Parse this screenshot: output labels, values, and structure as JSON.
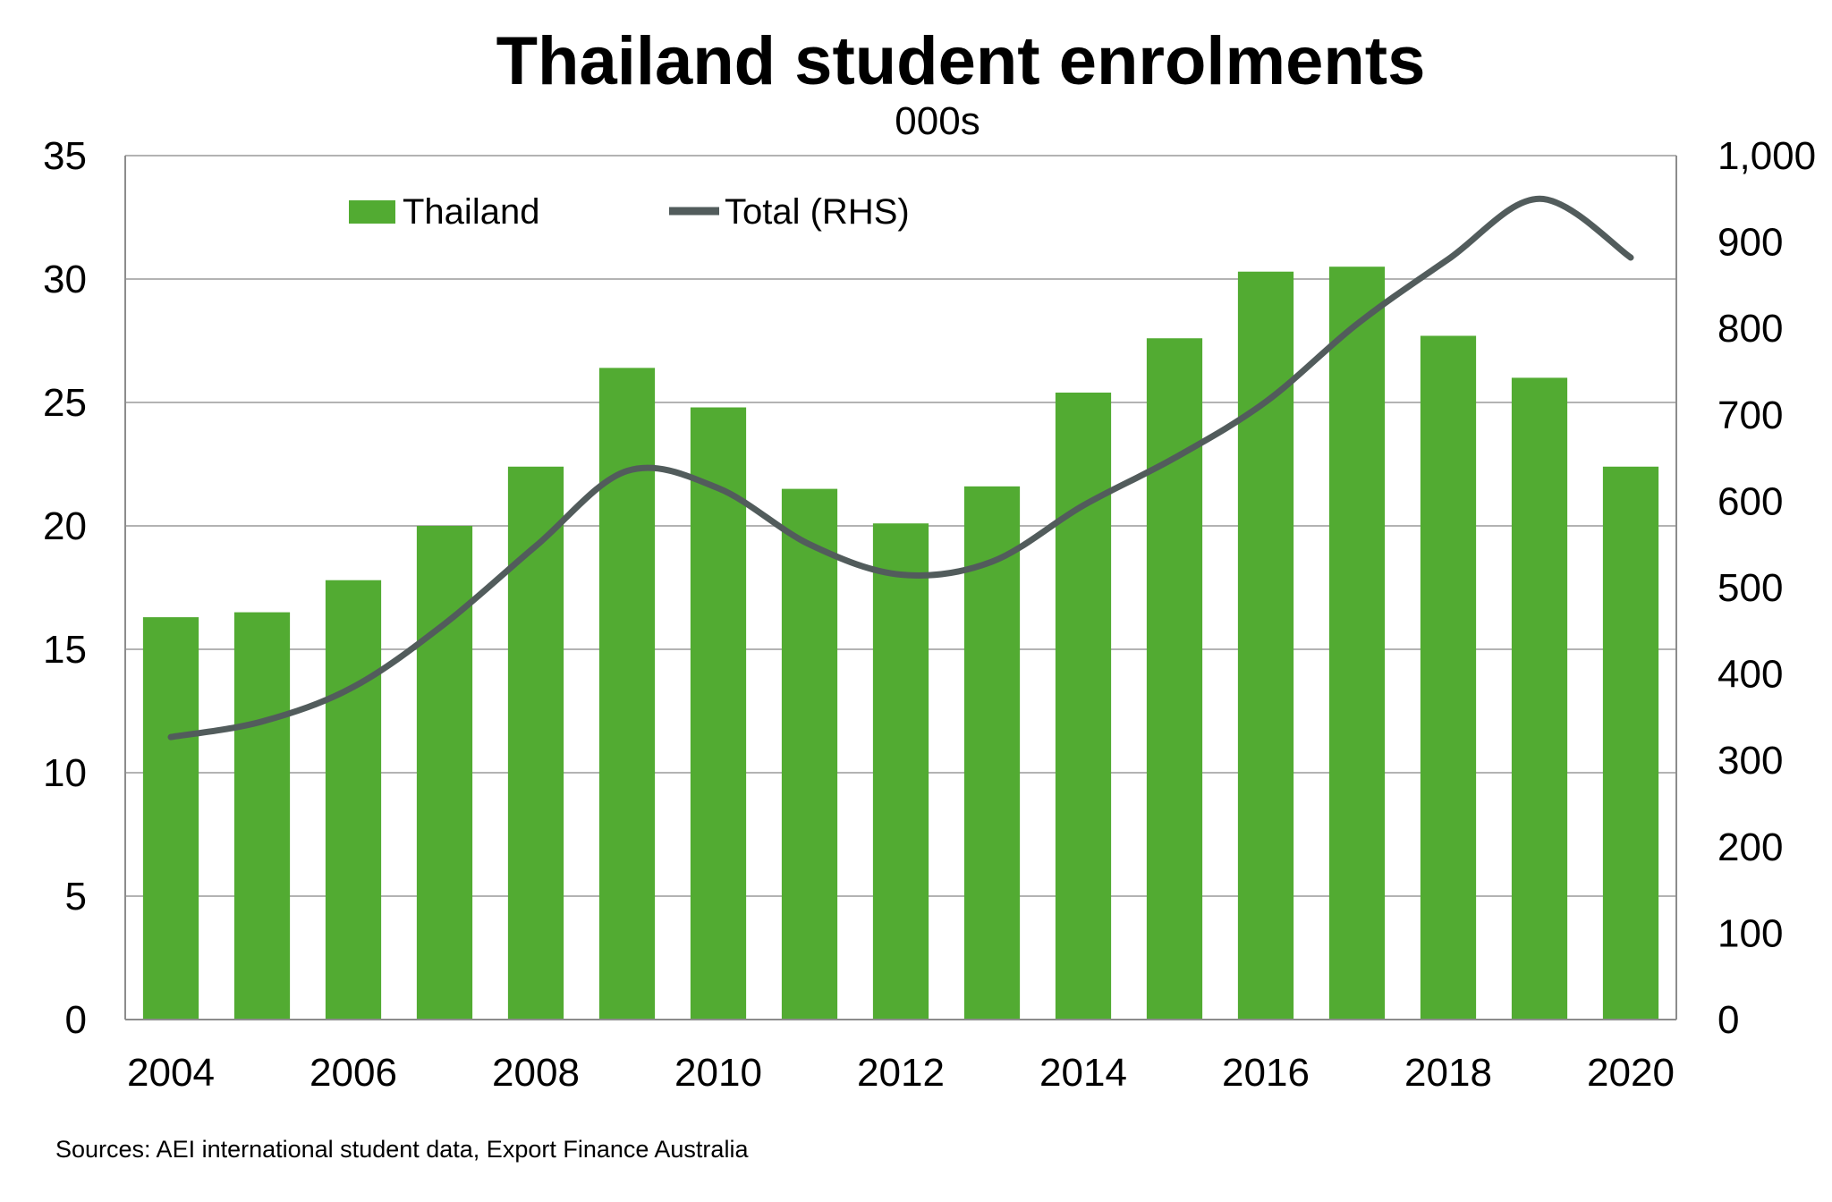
{
  "colors": {
    "bar": "#52ab32",
    "line": "#525c5c",
    "grid": "#b3b3b3",
    "axis": "#8c8c8c"
  },
  "chart_data": {
    "type": "bar",
    "title": "Thailand student enrolments",
    "subtitle": "000s",
    "categories": [
      "2004",
      "2005",
      "2006",
      "2007",
      "2008",
      "2009",
      "2010",
      "2011",
      "2012",
      "2013",
      "2014",
      "2015",
      "2016",
      "2017",
      "2018",
      "2019",
      "2020"
    ],
    "x_tick_labels": [
      "2004",
      "2006",
      "2008",
      "2010",
      "2012",
      "2014",
      "2016",
      "2018",
      "2020"
    ],
    "series": [
      {
        "name": "Thailand",
        "type": "bar",
        "axis": "left",
        "values": [
          16.3,
          16.5,
          17.8,
          20.0,
          22.4,
          26.4,
          24.8,
          21.5,
          20.1,
          21.6,
          25.4,
          27.6,
          30.3,
          30.5,
          27.7,
          26.0,
          22.4
        ]
      },
      {
        "name": "Total (RHS)",
        "type": "line",
        "axis": "right",
        "values": [
          327,
          345,
          385,
          458,
          548,
          635,
          615,
          550,
          515,
          530,
          595,
          650,
          715,
          805,
          880,
          950,
          882
        ]
      }
    ],
    "left_axis": {
      "min": 0,
      "max": 35,
      "step": 5,
      "tick_labels": [
        "0",
        "5",
        "10",
        "15",
        "20",
        "25",
        "30",
        "35"
      ]
    },
    "right_axis": {
      "min": 0,
      "max": 1000,
      "step": 100,
      "tick_labels": [
        "0",
        "100",
        "200",
        "300",
        "400",
        "500",
        "600",
        "700",
        "800",
        "900",
        "1,000"
      ]
    },
    "grid": true,
    "legend_position": "top-left"
  },
  "source": "Sources: AEI international student data, Export Finance Australia"
}
